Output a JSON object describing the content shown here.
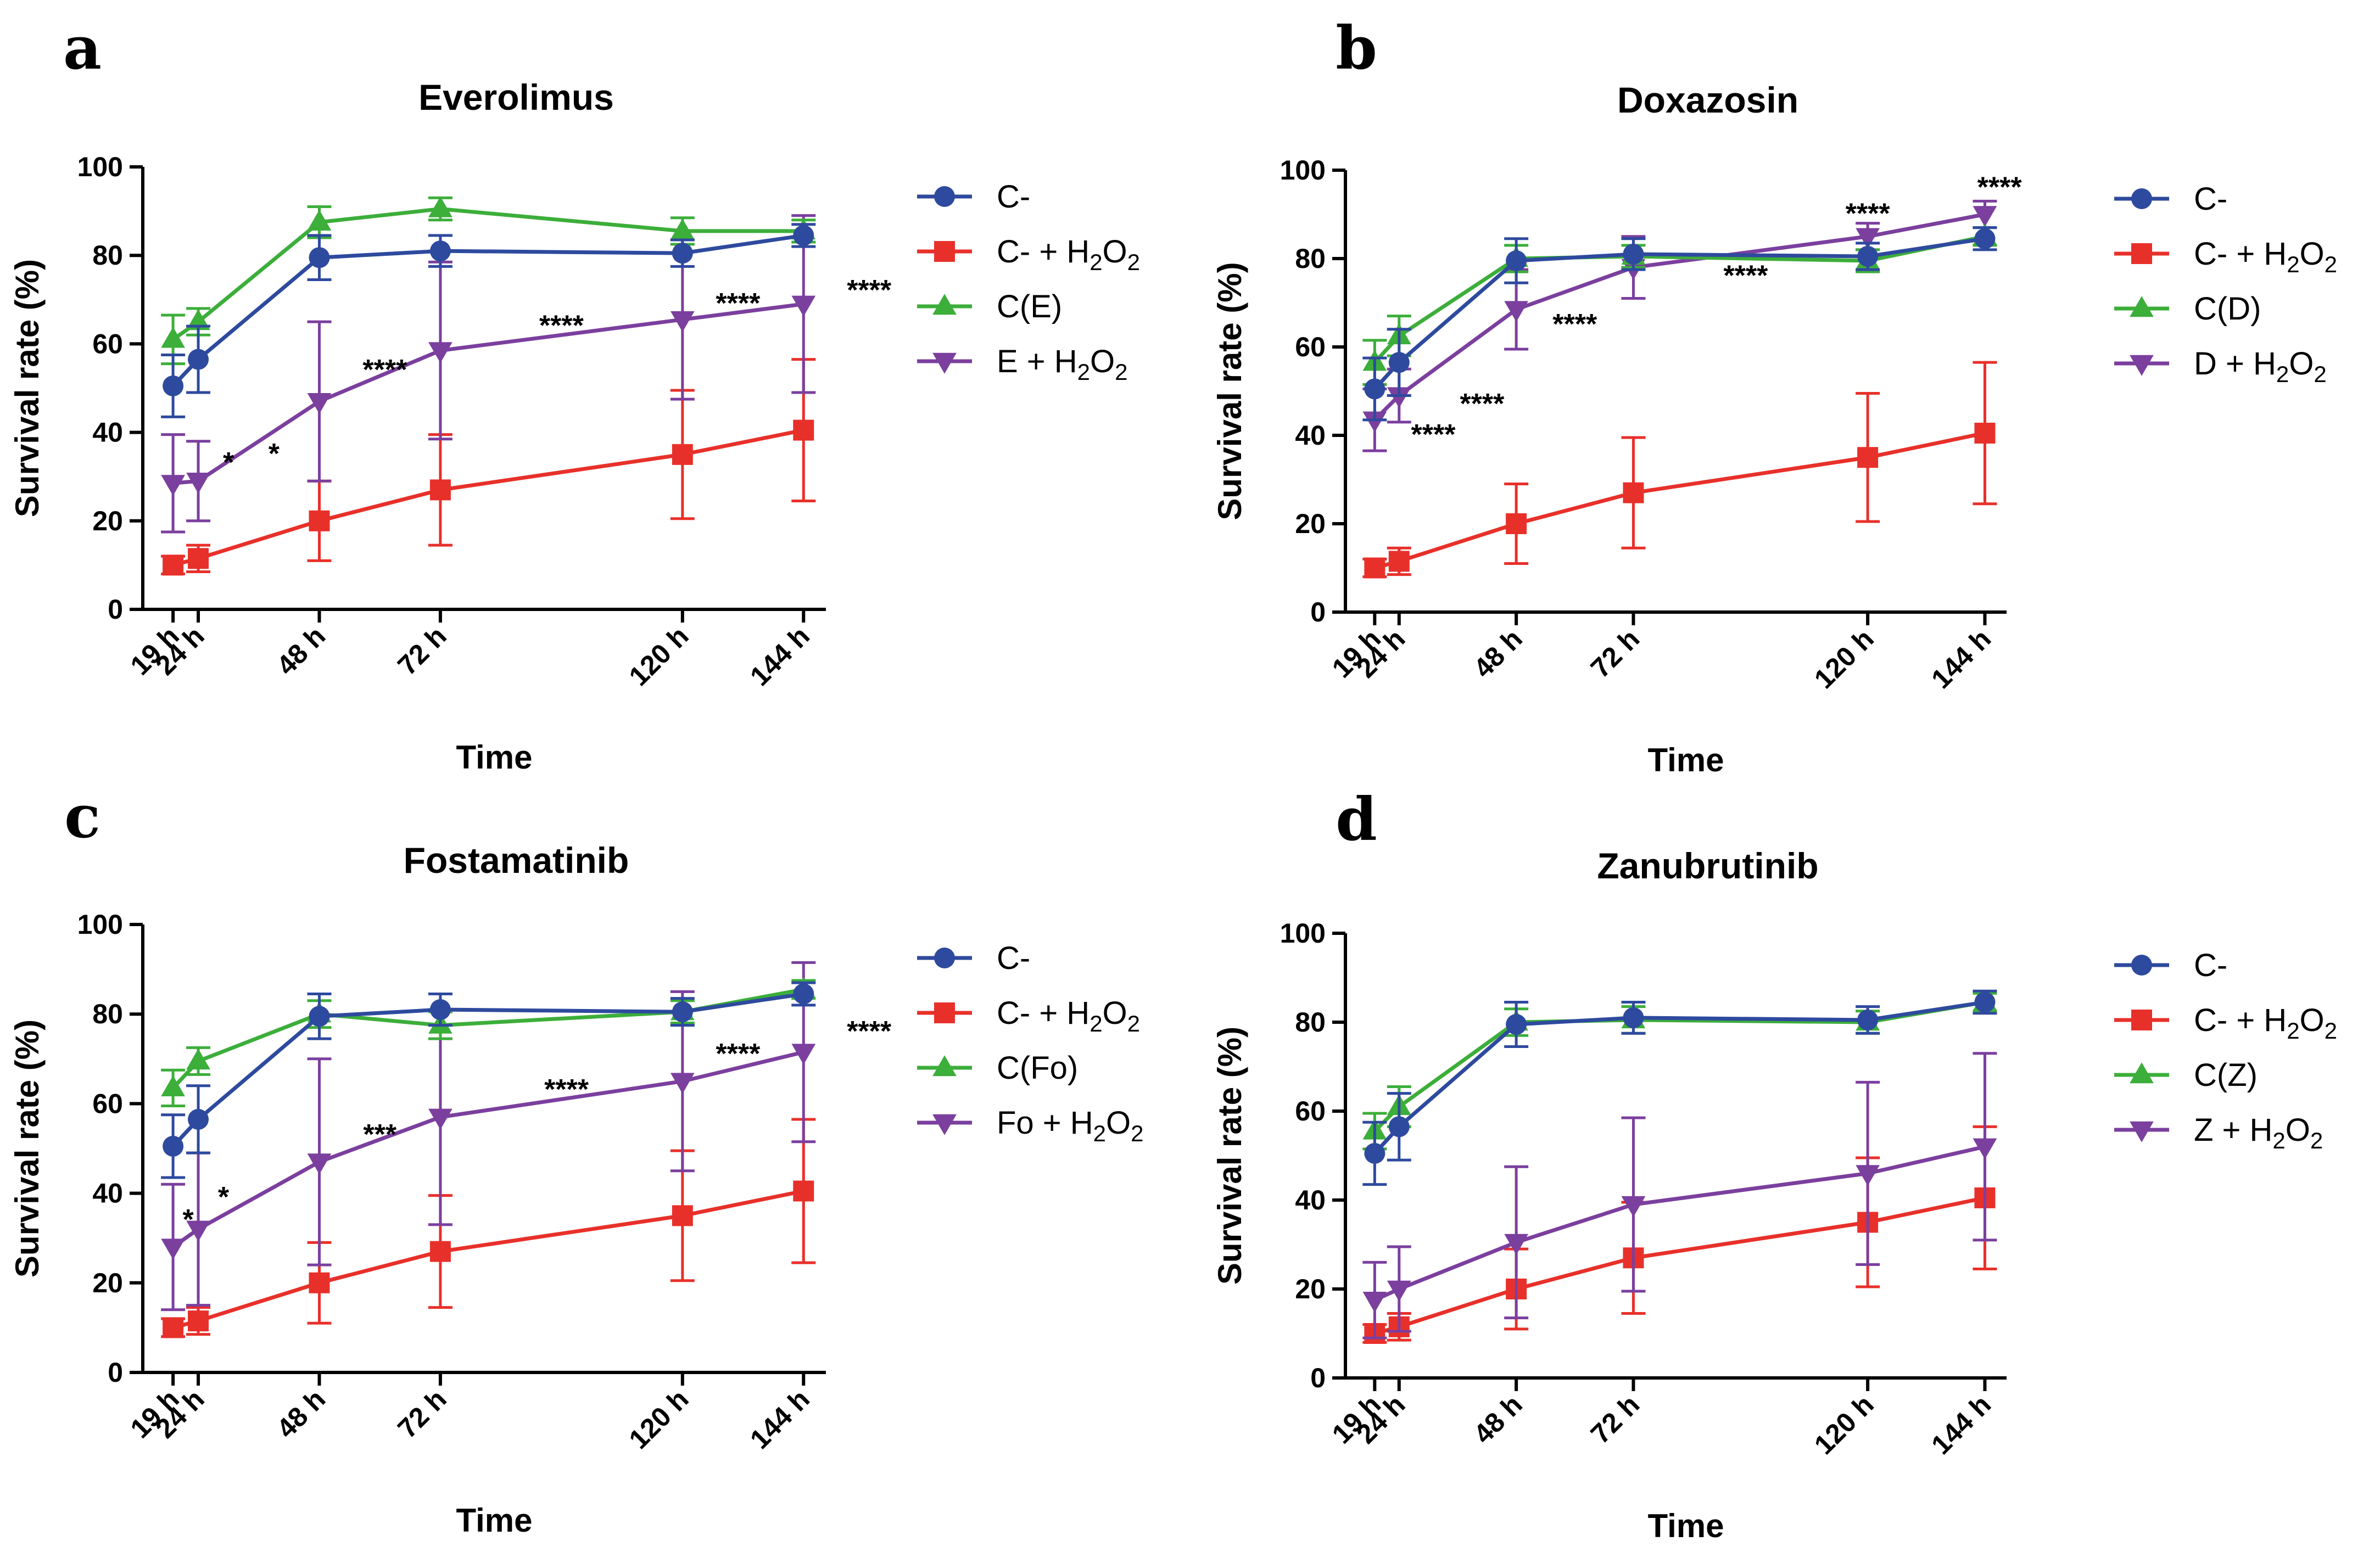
{
  "chart_data": [
    {
      "type": "line",
      "panel": "a",
      "title": "Everolimus",
      "xlabel": "Time",
      "ylabel": "Survival rate (%)",
      "ylim": [
        0,
        100
      ],
      "yticks": [
        "0",
        "20",
        "40",
        "60",
        "80",
        "100"
      ],
      "categories": [
        "19 h",
        "24 h",
        "48 h",
        "72 h",
        "120 h",
        "144 h"
      ],
      "x": [
        19,
        24,
        48,
        72,
        120,
        144
      ],
      "series": [
        {
          "name": "C-",
          "sub": "",
          "marker": "circle",
          "color": "#2e4a9e",
          "values": [
            50.5,
            56.5,
            79.5,
            81,
            80.5,
            84.5
          ],
          "errors": [
            7,
            7.5,
            5,
            3.5,
            3,
            2.5
          ]
        },
        {
          "name": "C- + H",
          "sub": "2",
          "mid": "O",
          "sub2": "2",
          "marker": "square",
          "color": "#e8302a",
          "values": [
            10,
            11.5,
            20,
            27,
            35,
            40.5
          ],
          "errors": [
            2,
            3,
            9,
            12.5,
            14.5,
            16
          ]
        },
        {
          "name": "C(E)",
          "sub": "",
          "marker": "triangle-up",
          "color": "#3cae3a",
          "values": [
            61,
            65,
            87.5,
            90.5,
            85.5,
            85.5
          ],
          "errors": [
            5.5,
            3,
            3.5,
            2.5,
            3,
            2.5
          ]
        },
        {
          "name": "E + H",
          "sub": "2",
          "mid": "O",
          "sub2": "2",
          "marker": "triangle-down",
          "color": "#7b3f9e",
          "values": [
            28.5,
            29,
            47,
            58.5,
            65.5,
            69
          ],
          "errors": [
            11,
            9,
            18,
            20,
            18,
            20
          ]
        }
      ],
      "annotations": [
        {
          "text": "*",
          "x": 30,
          "y": 31
        },
        {
          "text": "*",
          "x": 39,
          "y": 33
        },
        {
          "text": "****",
          "x": 61,
          "y": 52
        },
        {
          "text": "****",
          "x": 96,
          "y": 62
        },
        {
          "text": "****",
          "x": 131,
          "y": 67
        },
        {
          "text": "****",
          "x": 157,
          "y": 70
        }
      ]
    },
    {
      "type": "line",
      "panel": "b",
      "title": "Doxazosin",
      "xlabel": "Time",
      "ylabel": "Survival rate (%)",
      "ylim": [
        0,
        100
      ],
      "yticks": [
        "0",
        "20",
        "40",
        "60",
        "80",
        "100"
      ],
      "categories": [
        "19 h",
        "24 h",
        "48 h",
        "72 h",
        "120 h",
        "144 h"
      ],
      "x": [
        19,
        24,
        48,
        72,
        120,
        144
      ],
      "series": [
        {
          "name": "C-",
          "sub": "",
          "marker": "circle",
          "color": "#2e4a9e",
          "values": [
            50.5,
            56.5,
            79.5,
            81,
            80.5,
            84.5
          ],
          "errors": [
            7,
            7.5,
            5,
            3.5,
            3,
            2.5
          ]
        },
        {
          "name": "C- + H",
          "sub": "2",
          "mid": "O",
          "sub2": "2",
          "marker": "square",
          "color": "#e8302a",
          "values": [
            10,
            11.5,
            20,
            27,
            35,
            40.5
          ],
          "errors": [
            2,
            3,
            9,
            12.5,
            14.5,
            16
          ]
        },
        {
          "name": "C(D)",
          "sub": "",
          "marker": "triangle-up",
          "color": "#3cae3a",
          "values": [
            56.5,
            62.5,
            80,
            80.5,
            79.5,
            85
          ],
          "errors": [
            5,
            4.5,
            3,
            2.5,
            2.5,
            2
          ]
        },
        {
          "name": "D + H",
          "sub": "2",
          "mid": "O",
          "sub2": "2",
          "marker": "triangle-down",
          "color": "#7b3f9e",
          "values": [
            43.5,
            49,
            68.5,
            78,
            85,
            90
          ],
          "errors": [
            7,
            6,
            9,
            7,
            3,
            3
          ]
        }
      ],
      "annotations": [
        {
          "text": "****",
          "x": 31,
          "y": 38
        },
        {
          "text": "****",
          "x": 41,
          "y": 45
        },
        {
          "text": "****",
          "x": 60,
          "y": 63
        },
        {
          "text": "****",
          "x": 95,
          "y": 74
        },
        {
          "text": "****",
          "x": 120,
          "y": 88
        },
        {
          "text": "****",
          "x": 147,
          "y": 94
        }
      ]
    },
    {
      "type": "line",
      "panel": "c",
      "title": "Fostamatinib",
      "xlabel": "Time",
      "ylabel": "Survival rate (%)",
      "ylim": [
        0,
        100
      ],
      "yticks": [
        "0",
        "20",
        "40",
        "60",
        "80",
        "100"
      ],
      "categories": [
        "19 h",
        "24 h",
        "48 h",
        "72 h",
        "120 h",
        "144 h"
      ],
      "x": [
        19,
        24,
        48,
        72,
        120,
        144
      ],
      "series": [
        {
          "name": "C-",
          "sub": "",
          "marker": "circle",
          "color": "#2e4a9e",
          "values": [
            50.5,
            56.5,
            79.5,
            81,
            80.5,
            84.5
          ],
          "errors": [
            7,
            7.5,
            5,
            3.5,
            3,
            2.5
          ]
        },
        {
          "name": "C- + H",
          "sub": "2",
          "mid": "O",
          "sub2": "2",
          "marker": "square",
          "color": "#e8302a",
          "values": [
            10,
            11.5,
            20,
            27,
            35,
            40.5
          ],
          "errors": [
            2,
            3,
            9,
            12.5,
            14.5,
            16
          ]
        },
        {
          "name": "C(Fo)",
          "sub": "",
          "marker": "triangle-up",
          "color": "#3cae3a",
          "values": [
            63.5,
            69.5,
            80,
            77.5,
            80.5,
            85.5
          ],
          "errors": [
            4,
            3,
            3,
            3,
            2.5,
            2
          ]
        },
        {
          "name": "Fo + H",
          "sub": "2",
          "mid": "O",
          "sub2": "2",
          "marker": "triangle-down",
          "color": "#7b3f9e",
          "values": [
            28,
            32,
            47,
            57,
            65,
            71.5
          ],
          "errors": [
            14,
            17,
            23,
            24,
            20,
            20
          ]
        }
      ],
      "annotations": [
        {
          "text": "*",
          "x": 22,
          "y": 32
        },
        {
          "text": "*",
          "x": 29,
          "y": 37
        },
        {
          "text": "***",
          "x": 60,
          "y": 51
        },
        {
          "text": "****",
          "x": 97,
          "y": 61
        },
        {
          "text": "****",
          "x": 131,
          "y": 69
        },
        {
          "text": "****",
          "x": 157,
          "y": 74
        }
      ]
    },
    {
      "type": "line",
      "panel": "d",
      "title": "Zanubrutinib",
      "xlabel": "Time",
      "ylabel": "Survival rate (%)",
      "ylim": [
        0,
        100
      ],
      "yticks": [
        "0",
        "20",
        "40",
        "60",
        "80",
        "100"
      ],
      "categories": [
        "19 h",
        "24 h",
        "48 h",
        "72 h",
        "120 h",
        "144 h"
      ],
      "x": [
        19,
        24,
        48,
        72,
        120,
        144
      ],
      "series": [
        {
          "name": "C-",
          "sub": "",
          "marker": "circle",
          "color": "#2e4a9e",
          "values": [
            50.5,
            56.5,
            79.5,
            81,
            80.5,
            84.5
          ],
          "errors": [
            7,
            7.5,
            5,
            3.5,
            3,
            2.5
          ]
        },
        {
          "name": "C- + H",
          "sub": "2",
          "mid": "O",
          "sub2": "2",
          "marker": "square",
          "color": "#e8302a",
          "values": [
            10,
            11.5,
            20,
            27,
            35,
            40.5
          ],
          "errors": [
            2,
            3,
            9,
            12.5,
            14.5,
            16
          ]
        },
        {
          "name": "C(Z)",
          "sub": "",
          "marker": "triangle-up",
          "color": "#3cae3a",
          "values": [
            55.5,
            61,
            80,
            80.5,
            80,
            84.5
          ],
          "errors": [
            4,
            4.5,
            3,
            3,
            2.5,
            2
          ]
        },
        {
          "name": "Z + H",
          "sub": "2",
          "mid": "O",
          "sub2": "2",
          "marker": "triangle-down",
          "color": "#7b3f9e",
          "values": [
            17.5,
            20,
            30.5,
            39,
            46,
            52
          ],
          "errors": [
            8.5,
            9.5,
            17,
            19.5,
            20.5,
            21
          ]
        }
      ],
      "annotations": []
    }
  ]
}
